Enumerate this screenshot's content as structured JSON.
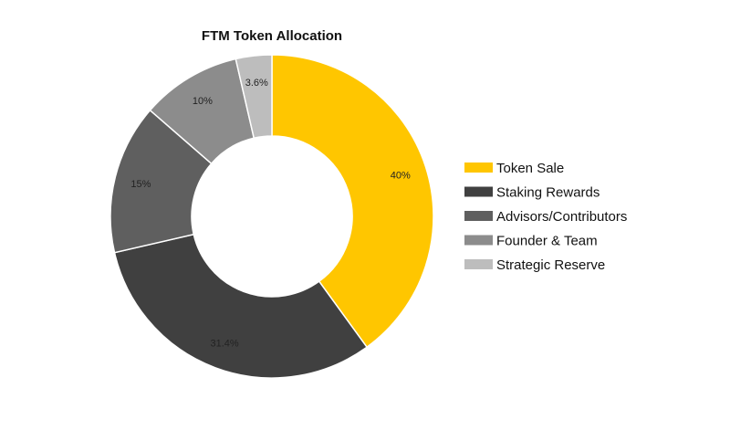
{
  "chart_data": {
    "type": "pie",
    "donut": true,
    "title": "FTM Token Allocation",
    "legend_position": "right",
    "slices": [
      {
        "name": "Token Sale",
        "value": 40,
        "label": "40%",
        "color": "#FFC600"
      },
      {
        "name": "Staking Rewards",
        "value": 31.4,
        "label": "31.4%",
        "color": "#404040"
      },
      {
        "name": "Advisors/Contributors",
        "value": 15,
        "label": "15%",
        "color": "#5F5F5F"
      },
      {
        "name": "Founder & Team",
        "value": 10,
        "label": "10%",
        "color": "#8C8C8C"
      },
      {
        "name": "Strategic Reserve",
        "value": 3.6,
        "label": "3.6%",
        "color": "#BDBDBD"
      }
    ]
  }
}
